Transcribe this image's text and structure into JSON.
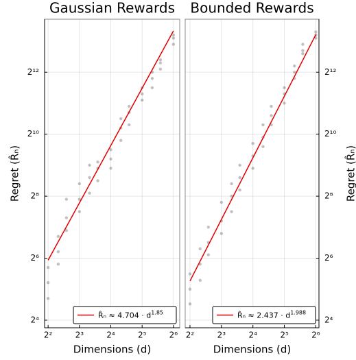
{
  "chart_data": [
    {
      "type": "scatter",
      "title": "Gaussian Rewards",
      "xlabel": "Dimensions (d)",
      "ylabel": "Regret (R̂ₙ)",
      "log_base": 2,
      "grid": true,
      "legend": "lower right",
      "yaxis_side": "left",
      "color": "#333333",
      "x": [
        4,
        4,
        4,
        5,
        5,
        5,
        6,
        6,
        6,
        8,
        8,
        8,
        10,
        10,
        10,
        12,
        12,
        12,
        16,
        16,
        16,
        20,
        20,
        20,
        24,
        24,
        24,
        32,
        32,
        32,
        40,
        40,
        40,
        48,
        48,
        48,
        64,
        64,
        64
      ],
      "values": [
        26,
        37,
        52,
        56,
        74,
        104,
        119,
        158,
        239,
        181,
        239,
        338,
        274,
        388,
        512,
        362,
        478,
        549,
        478,
        588,
        724,
        891,
        1176,
        1448,
        1261,
        1663,
        1911,
        2195,
        2521,
        2896,
        2896,
        3566,
        4096,
        4390,
        5043,
        5405,
        7643,
        8780,
        9410
      ],
      "fit": {
        "name": "R̂ₙ ≈ 4.704 · d",
        "name_sup": "1.85",
        "color": "#e00000",
        "x": [
          4,
          64
        ],
        "values": [
          61.1,
          10326
        ]
      },
      "xlim": [
        3.7,
        73.5
      ],
      "ylim": [
        13.5,
        13400
      ],
      "xticks": [
        {
          "value": 4,
          "label": "2²"
        },
        {
          "value": 8,
          "label": "2³"
        },
        {
          "value": 16,
          "label": "2⁴"
        },
        {
          "value": 32,
          "label": "2⁵"
        },
        {
          "value": 64,
          "label": "2⁶"
        }
      ],
      "yticks": [
        {
          "value": 16,
          "label": "2⁴"
        },
        {
          "value": 64,
          "label": "2⁶"
        },
        {
          "value": 256,
          "label": "2⁸"
        },
        {
          "value": 1024,
          "label": "2¹⁰"
        },
        {
          "value": 4096,
          "label": "2¹²"
        }
      ]
    },
    {
      "type": "scatter",
      "title": "Bounded Rewards",
      "xlabel": "Dimensions (d)",
      "ylabel": "Regret (R̂ₙ)",
      "log_base": 2,
      "grid": true,
      "legend": "lower right",
      "yaxis_side": "right",
      "color": "#333333",
      "x": [
        4,
        4,
        4,
        5,
        5,
        5,
        6,
        6,
        6,
        8,
        8,
        8,
        10,
        10,
        10,
        12,
        12,
        12,
        16,
        16,
        16,
        20,
        20,
        20,
        24,
        24,
        24,
        32,
        32,
        32,
        40,
        40,
        40,
        48,
        48,
        48,
        64,
        64,
        64
      ],
      "values": [
        23,
        32,
        45,
        39,
        56,
        79,
        69,
        91,
        128,
        111,
        147,
        223,
        181,
        256,
        338,
        294,
        388,
        512,
        478,
        630,
        832,
        776,
        955,
        1261,
        1261,
        1552,
        1911,
        2048,
        2521,
        2896,
        3566,
        4096,
        4705,
        6208,
        6654,
        7643,
        8780,
        9410,
        10086
      ],
      "fit": {
        "name": "R̂ₙ ≈ 2.437 · d",
        "name_sup": "1.988",
        "color": "#e00000",
        "x": [
          4,
          64
        ],
        "values": [
          38.4,
          9495
        ]
      },
      "xlim": [
        3.6,
        68.6
      ],
      "ylim": [
        13.5,
        13400
      ],
      "xticks": [
        {
          "value": 4,
          "label": "2²"
        },
        {
          "value": 8,
          "label": "2³"
        },
        {
          "value": 16,
          "label": "2⁴"
        },
        {
          "value": 32,
          "label": "2⁵"
        },
        {
          "value": 64,
          "label": "2⁶"
        }
      ],
      "yticks": [
        {
          "value": 16,
          "label": "2⁴"
        },
        {
          "value": 64,
          "label": "2⁶"
        },
        {
          "value": 256,
          "label": "2⁸"
        },
        {
          "value": 1024,
          "label": "2¹⁰"
        },
        {
          "value": 4096,
          "label": "2¹²"
        }
      ]
    }
  ]
}
